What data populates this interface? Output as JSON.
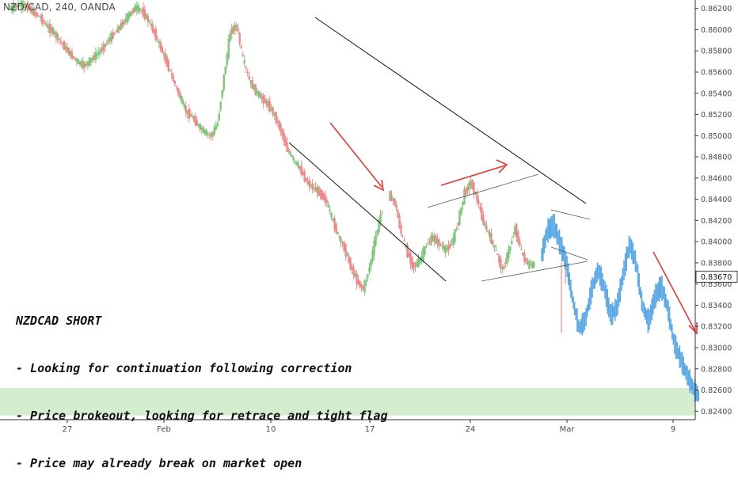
{
  "header": {
    "symbol_label": "NZD/CAD, 240, OANDA"
  },
  "annotation": {
    "title": "NZDCAD SHORT",
    "lines": [
      "- Looking for continuation following correction",
      "- Price brokeout, looking for retrace and tight flag",
      "- Price may already break on market open"
    ]
  },
  "colors": {
    "up": "#7cc77a",
    "down": "#ee8a8a",
    "projection": "#5aa9e6",
    "arrow": "#e53935",
    "zone": "#d4edcf",
    "trendline": "#111111",
    "flagline": "#555555"
  },
  "chart_data": {
    "type": "line",
    "title": "",
    "xlabel": "",
    "ylabel": "",
    "ylim": [
      0.8232,
      0.8628
    ],
    "y_ticks": [
      "0.82400",
      "0.82600",
      "0.82800",
      "0.83000",
      "0.83200",
      "0.83400",
      "0.83600",
      "0.83800",
      "0.84000",
      "0.84200",
      "0.84400",
      "0.84600",
      "0.84800",
      "0.85000",
      "0.85200",
      "0.85400",
      "0.85600",
      "0.85800",
      "0.86000",
      "0.86200"
    ],
    "x_ticks": [
      "27",
      "Feb",
      "10",
      "17",
      "24",
      "Mar",
      "9"
    ],
    "last_price_label": "0.83670",
    "support_zone": [
      0.8236,
      0.8262
    ],
    "series": [
      {
        "style": "candles",
        "x": [
          0,
          12,
          24,
          36,
          48,
          60,
          72,
          84,
          96,
          108,
          120,
          132,
          144,
          156,
          168,
          180,
          192,
          204,
          216,
          228,
          240,
          252,
          264,
          276,
          288,
          300,
          312,
          324,
          336,
          348,
          360,
          372,
          384,
          396,
          408,
          420,
          432,
          444,
          456,
          468,
          480,
          492,
          504,
          516,
          528,
          540,
          552,
          564,
          576,
          588,
          600,
          612,
          624,
          636,
          648,
          660,
          672,
          684,
          696,
          708
        ],
        "y": [
          0.8619,
          0.8622,
          0.8624,
          0.8621,
          0.8616,
          0.8611,
          0.8603,
          0.8598,
          0.859,
          0.8582,
          0.8575,
          0.8569,
          0.8566,
          0.8572,
          0.8577,
          0.8584,
          0.8592,
          0.8599,
          0.8606,
          0.8614,
          0.8621,
          0.8618,
          0.8609,
          0.8597,
          0.8583,
          0.8568,
          0.8552,
          0.8537,
          0.8523,
          0.8517,
          0.8509,
          0.8503,
          0.85,
          0.8512,
          0.8556,
          0.8598,
          0.8604,
          0.8572,
          0.8552,
          0.8542,
          0.8535,
          0.8529,
          0.8519,
          0.8505,
          0.8487,
          0.8477,
          0.8469,
          0.8457,
          0.8451,
          0.8447,
          0.844,
          0.8423,
          0.8406,
          0.8394,
          0.8377,
          0.8363,
          0.8355,
          0.8376,
          0.8405,
          0.8432
        ]
      },
      {
        "style": "candles-2",
        "x": [
          720,
          732,
          744,
          756,
          768,
          780,
          792,
          804,
          816,
          828,
          840,
          852,
          864,
          876,
          888,
          900,
          912,
          924,
          936,
          948,
          960,
          972,
          984,
          996
        ],
        "y": [
          0.8444,
          0.8437,
          0.8408,
          0.8389,
          0.8376,
          0.8383,
          0.8397,
          0.8404,
          0.8398,
          0.8392,
          0.8398,
          0.8419,
          0.8446,
          0.8456,
          0.844,
          0.8418,
          0.8405,
          0.839,
          0.8373,
          0.8391,
          0.8413,
          0.839,
          0.8378,
          0.8378
        ]
      },
      {
        "style": "projection",
        "x": [
          1008,
          1020,
          1032,
          1044,
          1056,
          1068,
          1080,
          1092,
          1104,
          1116,
          1128,
          1140,
          1152,
          1164,
          1176,
          1188,
          1200,
          1212,
          1224,
          1236,
          1248,
          1260,
          1272,
          1284,
          1296,
          1308
        ],
        "y": [
          0.8385,
          0.841,
          0.8416,
          0.8398,
          0.838,
          0.8345,
          0.8318,
          0.8326,
          0.8355,
          0.8373,
          0.8357,
          0.833,
          0.8338,
          0.837,
          0.8398,
          0.838,
          0.834,
          0.8324,
          0.8348,
          0.8358,
          0.8338,
          0.8305,
          0.829,
          0.8275,
          0.8262,
          0.8254
        ]
      }
    ]
  }
}
